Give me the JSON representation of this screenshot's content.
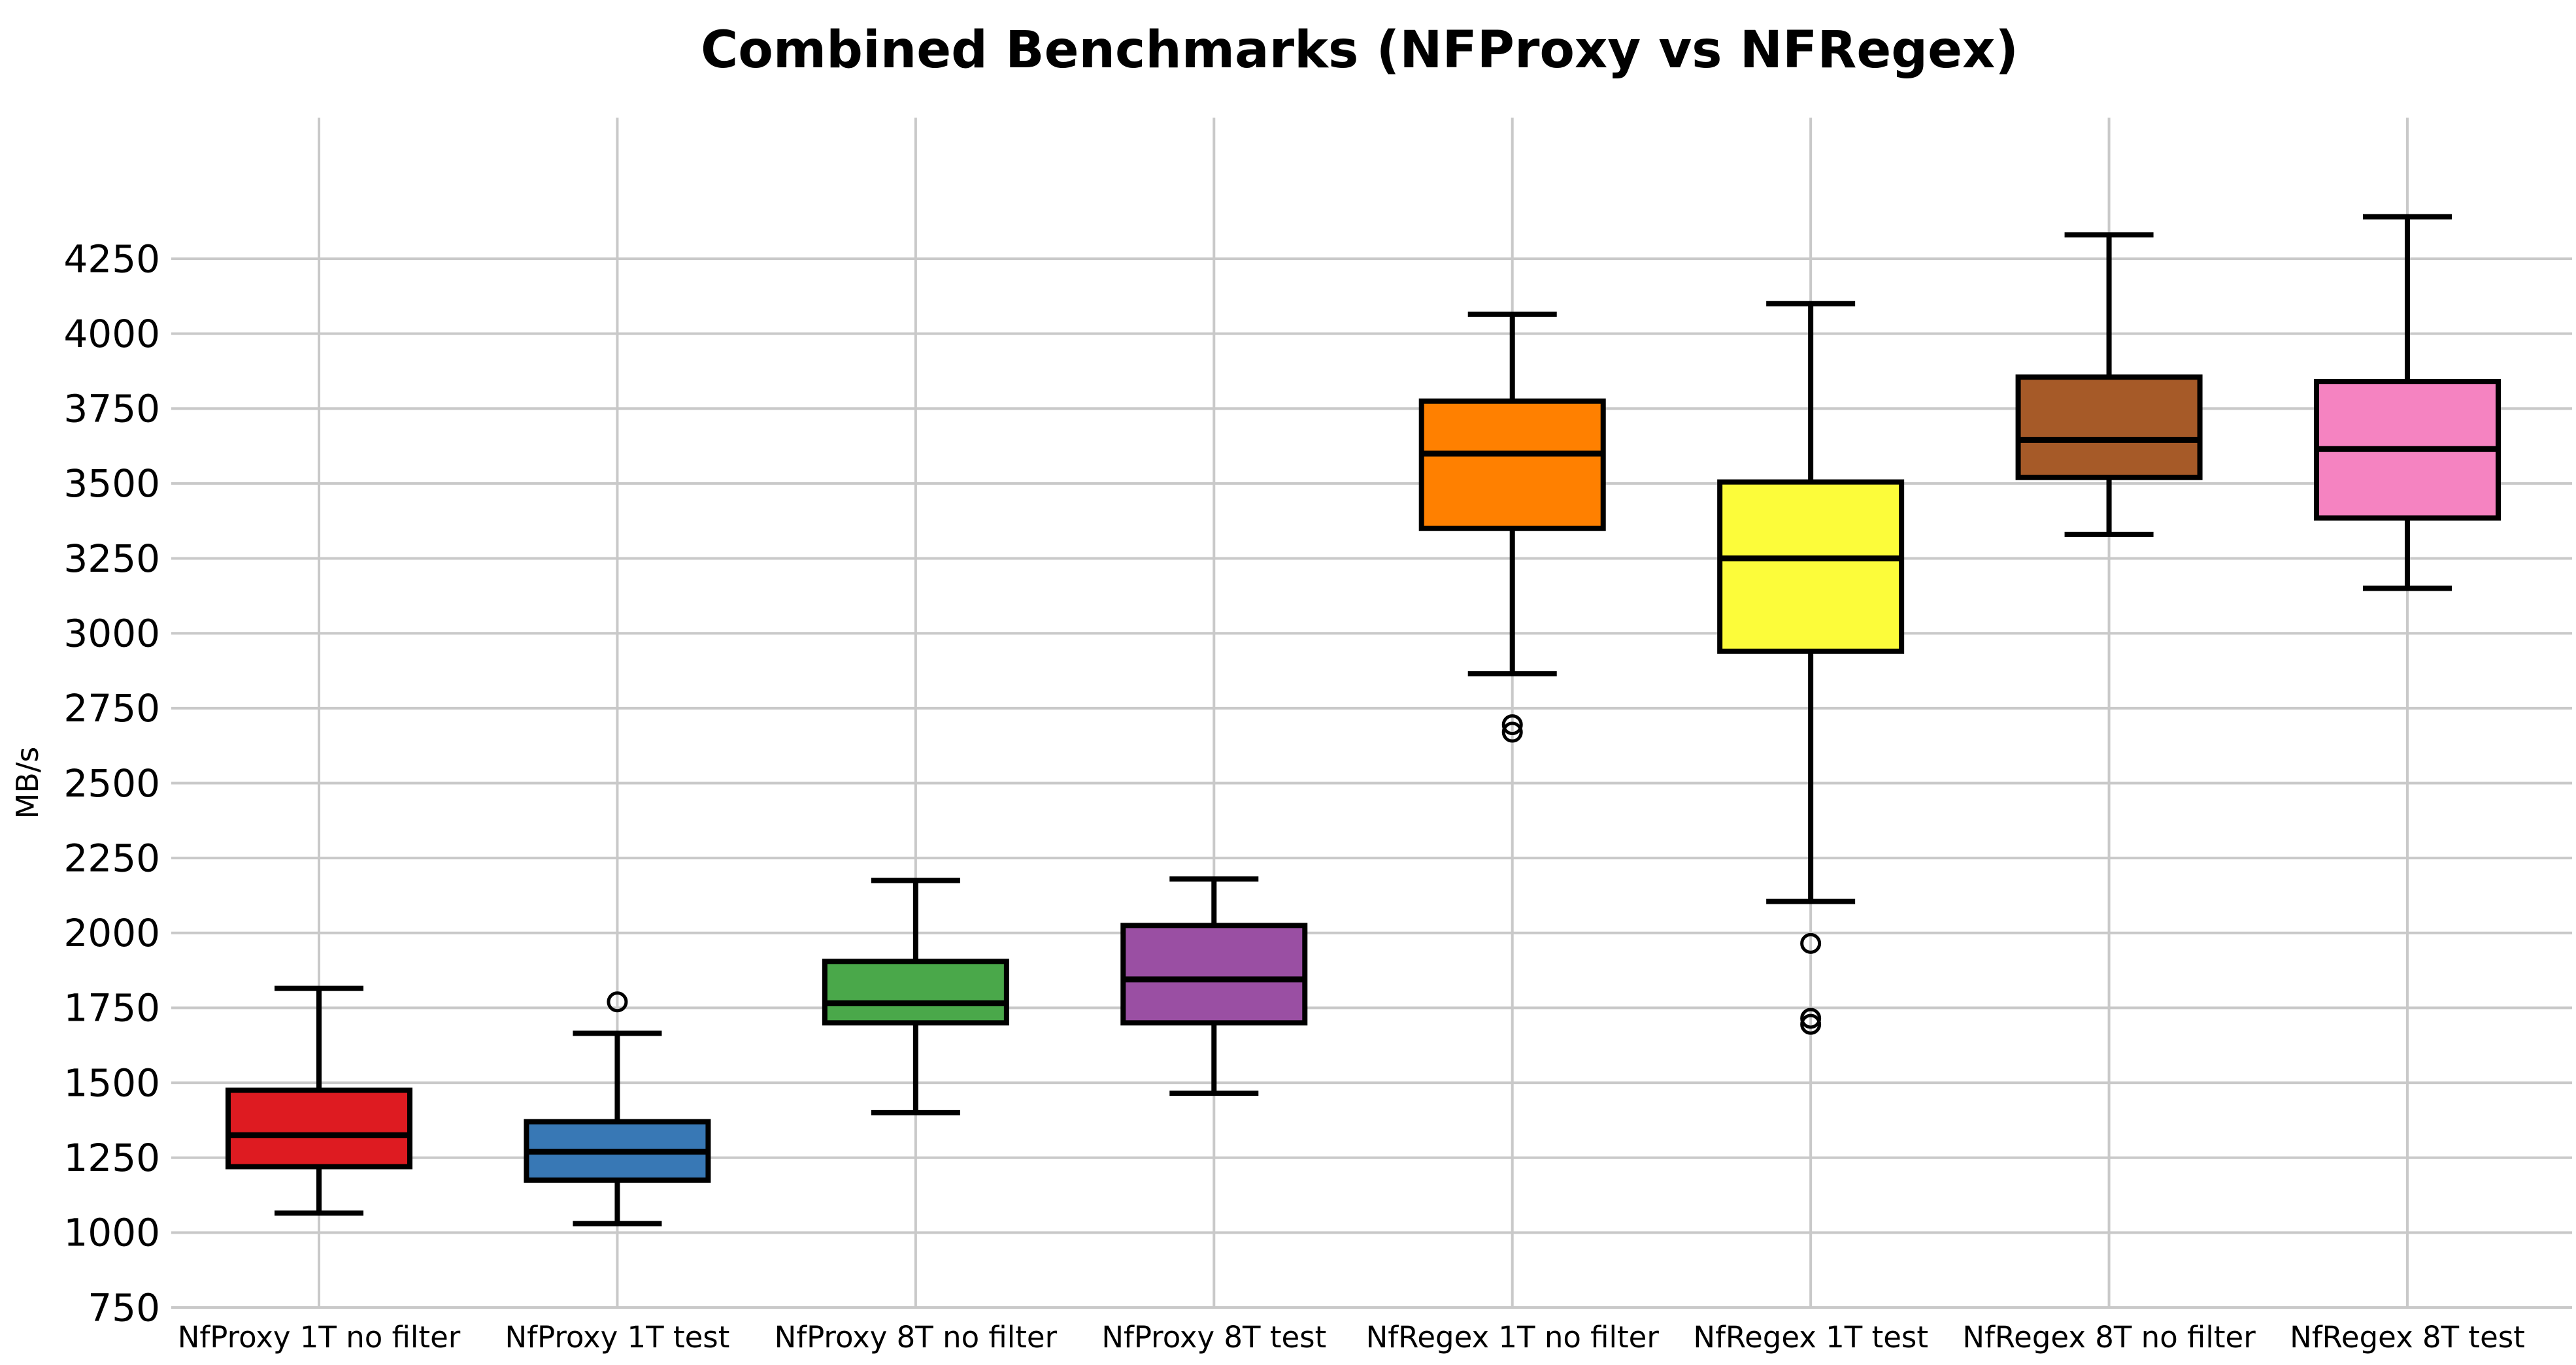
{
  "page": {
    "background": "#ffffff",
    "text_color": "#000000",
    "gridline_color": "#c9c9c9",
    "box_edge_color": "#000000"
  },
  "chart_data": {
    "type": "boxplot",
    "title": "Combined Benchmarks (NFProxy vs NFRegex)",
    "ylabel": "MB/s",
    "xlabel": "",
    "yticks": [
      750,
      1000,
      1250,
      1500,
      1750,
      2000,
      2250,
      2500,
      2750,
      3000,
      3250,
      3500,
      3750,
      4000,
      4250
    ],
    "ylim": [
      730,
      4720
    ],
    "grid": true,
    "legend": "none",
    "categories": [
      "NfProxy 1T no filter",
      "NfProxy 1T test",
      "NfProxy 8T no filter",
      "NfProxy 8T test",
      "NfRegex 1T no filter",
      "NfRegex 1T test",
      "NfRegex 8T no filter",
      "NfRegex 8T test"
    ],
    "series": [
      {
        "name": "NfProxy 1T no filter",
        "color": "#de1b21",
        "whisker_low": 1065,
        "q1": 1220,
        "median": 1325,
        "q3": 1475,
        "whisker_high": 1815,
        "outliers": []
      },
      {
        "name": "NfProxy 1T test",
        "color": "#3878b5",
        "whisker_low": 1030,
        "q1": 1175,
        "median": 1270,
        "q3": 1370,
        "whisker_high": 1665,
        "outliers": [
          1770
        ]
      },
      {
        "name": "NfProxy 8T no filter",
        "color": "#4aa84a",
        "whisker_low": 1400,
        "q1": 1700,
        "median": 1765,
        "q3": 1905,
        "whisker_high": 2175,
        "outliers": []
      },
      {
        "name": "NfProxy 8T test",
        "color": "#9a4fa3",
        "whisker_low": 1465,
        "q1": 1700,
        "median": 1845,
        "q3": 2025,
        "whisker_high": 2180,
        "outliers": []
      },
      {
        "name": "NfRegex 1T no filter",
        "color": "#ff8000",
        "whisker_low": 2865,
        "q1": 3350,
        "median": 3600,
        "q3": 3775,
        "whisker_high": 4065,
        "outliers": [
          2695,
          2670
        ]
      },
      {
        "name": "NfRegex 1T test",
        "color": "#fcfc3a",
        "whisker_low": 2105,
        "q1": 2940,
        "median": 3250,
        "q3": 3505,
        "whisker_high": 4100,
        "outliers": [
          1965,
          1715,
          1695
        ]
      },
      {
        "name": "NfRegex 8T no filter",
        "color": "#a65a28",
        "whisker_low": 3330,
        "q1": 3520,
        "median": 3645,
        "q3": 3855,
        "whisker_high": 4330,
        "outliers": []
      },
      {
        "name": "NfRegex 8T test",
        "color": "#f583c1",
        "whisker_low": 3150,
        "q1": 3385,
        "median": 3615,
        "q3": 3840,
        "whisker_high": 4390,
        "outliers": []
      }
    ]
  }
}
